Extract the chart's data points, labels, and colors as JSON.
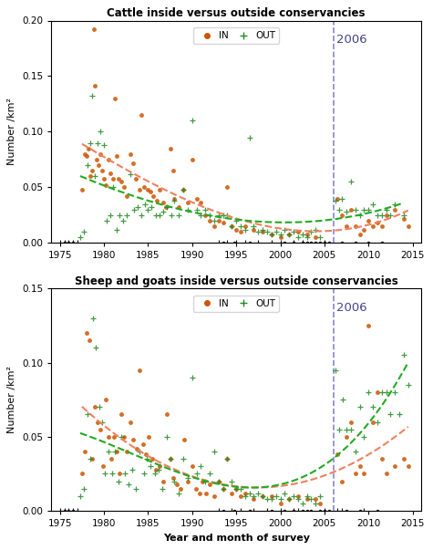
{
  "title1": "Cattle inside versus outside conservancies",
  "title2": "Sheep and goats inside versus outside conservancies",
  "xlabel": "Year and month of survey",
  "ylabel": "Number /km²",
  "vline_year": 2006,
  "vline_label": "2006",
  "xlim": [
    1974,
    2016
  ],
  "ylim1": [
    0,
    0.2
  ],
  "ylim2": [
    0,
    0.15
  ],
  "yticks1": [
    0.0,
    0.05,
    0.1,
    0.15,
    0.2
  ],
  "yticks2": [
    0.0,
    0.05,
    0.1,
    0.15
  ],
  "xticks": [
    1975,
    1980,
    1985,
    1990,
    1995,
    2000,
    2005,
    2010,
    2015
  ],
  "color_in": "#cc5500",
  "color_out": "#228B22",
  "color_trend_in": "#f08060",
  "color_trend_out": "#22aa22",
  "vline_color": "#8888cc",
  "background": "#ffffff",
  "cattle_in_x": [
    1977.5,
    1977.8,
    1978.0,
    1978.2,
    1978.4,
    1978.6,
    1978.9,
    1979.0,
    1979.2,
    1979.4,
    1979.6,
    1979.8,
    1980.0,
    1980.2,
    1980.5,
    1980.7,
    1981.0,
    1981.2,
    1981.4,
    1981.6,
    1982.0,
    1982.3,
    1982.6,
    1983.0,
    1983.3,
    1983.6,
    1984.0,
    1984.2,
    1984.5,
    1985.0,
    1985.3,
    1985.6,
    1986.0,
    1986.3,
    1986.7,
    1987.0,
    1987.5,
    1987.8,
    1988.0,
    1988.5,
    1989.0,
    1989.5,
    1990.0,
    1990.5,
    1991.0,
    1991.5,
    1992.0,
    1992.5,
    1993.0,
    1993.5,
    1994.0,
    1994.5,
    1995.0,
    1995.5,
    1996.0,
    1997.0,
    1998.0,
    1999.0,
    2000.0,
    2001.0,
    2002.0,
    2003.0,
    2004.0,
    2006.5,
    2007.0,
    2007.5,
    2008.0,
    2008.5,
    2009.0,
    2009.5,
    2010.0,
    2010.5,
    2011.0,
    2011.5,
    2012.0,
    2013.0,
    2014.0,
    2014.5
  ],
  "cattle_in_y": [
    0.048,
    0.08,
    0.078,
    0.085,
    0.06,
    0.065,
    0.192,
    0.141,
    0.075,
    0.07,
    0.08,
    0.065,
    0.058,
    0.052,
    0.075,
    0.063,
    0.058,
    0.13,
    0.078,
    0.058,
    0.055,
    0.05,
    0.042,
    0.08,
    0.072,
    0.058,
    0.048,
    0.115,
    0.05,
    0.048,
    0.046,
    0.042,
    0.038,
    0.048,
    0.036,
    0.032,
    0.085,
    0.065,
    0.04,
    0.032,
    0.048,
    0.036,
    0.075,
    0.04,
    0.036,
    0.025,
    0.02,
    0.015,
    0.02,
    0.018,
    0.05,
    0.015,
    0.012,
    0.01,
    0.015,
    0.012,
    0.01,
    0.008,
    0.005,
    0.008,
    0.01,
    0.008,
    0.005,
    0.04,
    0.025,
    0.015,
    0.03,
    0.015,
    0.008,
    0.012,
    0.02,
    0.015,
    0.018,
    0.015,
    0.025,
    0.03,
    0.022,
    0.015
  ],
  "cattle_out_x": [
    1977.3,
    1977.7,
    1978.1,
    1978.4,
    1978.7,
    1979.0,
    1979.3,
    1979.6,
    1980.0,
    1980.3,
    1980.7,
    1981.0,
    1981.4,
    1981.8,
    1982.2,
    1982.6,
    1983.0,
    1983.4,
    1983.8,
    1984.2,
    1984.6,
    1985.0,
    1985.4,
    1985.9,
    1986.3,
    1986.7,
    1987.1,
    1987.6,
    1988.0,
    1988.5,
    1989.0,
    1989.5,
    1990.0,
    1990.5,
    1991.0,
    1991.5,
    1992.0,
    1992.5,
    1993.0,
    1993.5,
    1994.0,
    1994.5,
    1995.0,
    1995.5,
    1996.0,
    1996.5,
    1997.0,
    1997.5,
    1998.0,
    1998.5,
    1999.0,
    1999.5,
    2000.0,
    2000.5,
    2001.0,
    2001.5,
    2002.0,
    2002.5,
    2003.0,
    2003.5,
    2004.0,
    2004.5,
    2006.3,
    2006.7,
    2007.0,
    2007.5,
    2008.0,
    2008.5,
    2009.0,
    2009.5,
    2010.0,
    2010.5,
    2011.0,
    2011.5,
    2012.0,
    2012.5,
    2013.0,
    2014.0
  ],
  "cattle_out_y": [
    0.005,
    0.01,
    0.07,
    0.09,
    0.132,
    0.06,
    0.09,
    0.1,
    0.088,
    0.02,
    0.025,
    0.05,
    0.012,
    0.025,
    0.02,
    0.025,
    0.062,
    0.03,
    0.032,
    0.025,
    0.035,
    0.03,
    0.032,
    0.025,
    0.025,
    0.028,
    0.032,
    0.025,
    0.038,
    0.025,
    0.048,
    0.03,
    0.11,
    0.03,
    0.025,
    0.03,
    0.025,
    0.02,
    0.025,
    0.025,
    0.025,
    0.015,
    0.02,
    0.015,
    0.012,
    0.095,
    0.015,
    0.01,
    0.012,
    0.01,
    0.008,
    0.01,
    0.008,
    0.012,
    0.008,
    0.01,
    0.005,
    0.008,
    0.005,
    0.01,
    0.012,
    0.005,
    0.038,
    0.03,
    0.04,
    0.028,
    0.055,
    0.03,
    0.025,
    0.03,
    0.03,
    0.035,
    0.025,
    0.025,
    0.03,
    0.025,
    0.035,
    0.025
  ],
  "shoat_in_x": [
    1977.5,
    1977.8,
    1978.0,
    1978.3,
    1978.6,
    1979.0,
    1979.3,
    1979.6,
    1979.9,
    1980.2,
    1980.5,
    1980.8,
    1981.1,
    1981.4,
    1981.7,
    1982.0,
    1982.3,
    1982.6,
    1983.0,
    1983.3,
    1983.7,
    1984.0,
    1984.4,
    1984.8,
    1985.1,
    1985.5,
    1985.9,
    1986.3,
    1986.7,
    1987.1,
    1987.5,
    1987.9,
    1988.3,
    1988.7,
    1989.1,
    1989.5,
    1990.0,
    1990.4,
    1990.8,
    1991.2,
    1991.6,
    1992.0,
    1992.5,
    1993.0,
    1993.5,
    1994.0,
    1994.5,
    1995.0,
    1995.5,
    1996.0,
    1997.0,
    1998.0,
    1999.0,
    2000.0,
    2001.0,
    2002.0,
    2003.0,
    2004.0,
    2004.5,
    2006.5,
    2007.0,
    2007.5,
    2008.0,
    2008.5,
    2009.0,
    2009.5,
    2010.0,
    2010.5,
    2011.0,
    2011.5,
    2012.0,
    2013.0,
    2014.0,
    2014.5
  ],
  "shoat_in_y": [
    0.025,
    0.04,
    0.12,
    0.115,
    0.035,
    0.07,
    0.06,
    0.055,
    0.03,
    0.075,
    0.05,
    0.035,
    0.05,
    0.04,
    0.025,
    0.065,
    0.05,
    0.04,
    0.06,
    0.048,
    0.042,
    0.095,
    0.045,
    0.038,
    0.05,
    0.035,
    0.028,
    0.03,
    0.02,
    0.065,
    0.035,
    0.022,
    0.018,
    0.015,
    0.048,
    0.02,
    0.03,
    0.015,
    0.012,
    0.02,
    0.012,
    0.018,
    0.01,
    0.02,
    0.015,
    0.035,
    0.012,
    0.015,
    0.01,
    0.012,
    0.008,
    0.01,
    0.01,
    0.005,
    0.008,
    0.01,
    0.008,
    0.008,
    0.005,
    0.038,
    0.02,
    0.05,
    0.06,
    0.025,
    0.03,
    0.025,
    0.125,
    0.06,
    0.08,
    0.035,
    0.025,
    0.03,
    0.035,
    0.03
  ],
  "shoat_out_x": [
    1977.3,
    1977.7,
    1978.1,
    1978.4,
    1978.8,
    1979.1,
    1979.5,
    1979.8,
    1980.1,
    1980.5,
    1980.9,
    1981.2,
    1981.6,
    1982.0,
    1982.4,
    1982.8,
    1983.2,
    1983.6,
    1984.0,
    1984.5,
    1984.9,
    1985.3,
    1985.8,
    1986.2,
    1986.6,
    1987.1,
    1987.5,
    1988.0,
    1988.5,
    1989.0,
    1989.5,
    1990.0,
    1990.5,
    1991.0,
    1991.5,
    1992.0,
    1992.5,
    1993.0,
    1993.5,
    1994.0,
    1994.5,
    1995.0,
    1995.5,
    1996.0,
    1996.5,
    1997.0,
    1997.5,
    1998.0,
    1998.5,
    1999.0,
    1999.5,
    2000.0,
    2000.5,
    2001.0,
    2001.5,
    2002.0,
    2002.5,
    2003.0,
    2003.5,
    2004.0,
    2004.5,
    2006.3,
    2006.7,
    2007.1,
    2007.5,
    2008.0,
    2008.5,
    2009.0,
    2009.5,
    2010.0,
    2010.5,
    2011.0,
    2011.5,
    2012.0,
    2012.5,
    2013.0,
    2013.5,
    2014.0,
    2014.5
  ],
  "shoat_out_y": [
    0.01,
    0.015,
    0.065,
    0.035,
    0.13,
    0.11,
    0.07,
    0.06,
    0.025,
    0.04,
    0.025,
    0.04,
    0.02,
    0.05,
    0.025,
    0.018,
    0.028,
    0.015,
    0.04,
    0.025,
    0.035,
    0.03,
    0.025,
    0.028,
    0.015,
    0.05,
    0.035,
    0.02,
    0.012,
    0.035,
    0.022,
    0.09,
    0.025,
    0.03,
    0.02,
    0.025,
    0.04,
    0.02,
    0.015,
    0.035,
    0.02,
    0.015,
    0.015,
    0.01,
    0.012,
    0.01,
    0.012,
    0.01,
    0.008,
    0.008,
    0.01,
    0.008,
    0.012,
    0.008,
    0.01,
    0.008,
    0.005,
    0.01,
    0.008,
    0.005,
    0.01,
    0.095,
    0.055,
    0.075,
    0.055,
    0.055,
    0.04,
    0.07,
    0.05,
    0.08,
    0.07,
    0.06,
    0.08,
    0.08,
    0.065,
    0.08,
    0.065,
    0.105,
    0.085
  ],
  "cattle_zeros_in_x": [
    1975.5,
    1976.0,
    1976.5,
    1993.5,
    1994.8,
    1996.5,
    2000.5,
    2001.5,
    2002.5,
    2003.0,
    2003.5,
    2004.0,
    2004.5,
    2005.0,
    2005.5,
    2007.0,
    2008.5,
    2010.0,
    2011.5
  ],
  "cattle_zeros_out_x": [
    1975.0,
    1975.5,
    1976.0,
    1976.5,
    1977.0,
    1993.0,
    1994.0,
    1995.0,
    1996.0,
    1997.5,
    1999.0,
    2000.0,
    2001.5,
    2002.5,
    2005.0
  ],
  "shoat_zeros_in_x": [
    1975.5,
    1976.0,
    1976.5,
    1993.5,
    1994.8,
    1996.5,
    1999.0,
    2000.5,
    2001.5,
    2002.5,
    2003.0,
    2003.5,
    2004.5,
    2005.0,
    2005.5,
    2007.5,
    2009.0,
    2011.0
  ],
  "shoat_zeros_out_x": [
    1975.0,
    1975.5,
    1976.0,
    1976.5,
    1977.0,
    1993.0,
    1994.5,
    1995.5,
    1997.0,
    1998.5,
    2000.0,
    2001.5,
    2002.0,
    2005.0,
    2006.5,
    2007.0,
    2009.5
  ]
}
